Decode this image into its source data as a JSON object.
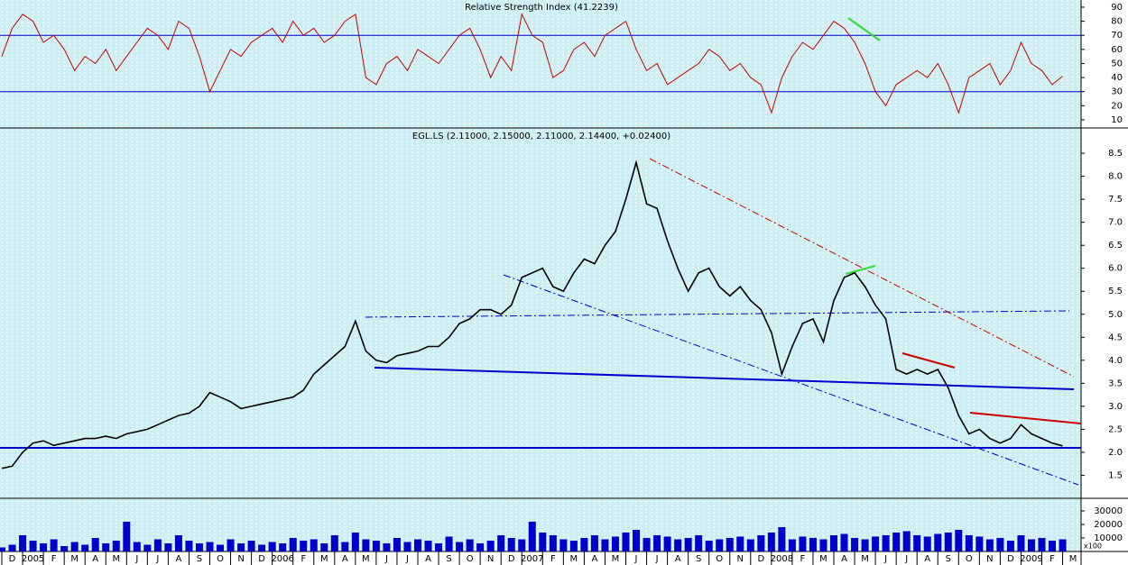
{
  "chart_data": [
    {
      "type": "line",
      "title": "Relative Strength Index (41.2239)",
      "series": [
        {
          "name": "RSI",
          "color": "#cc0000",
          "values": [
            55,
            75,
            85,
            80,
            65,
            70,
            60,
            45,
            55,
            50,
            60,
            45,
            55,
            65,
            75,
            70,
            60,
            80,
            75,
            55,
            30,
            45,
            60,
            55,
            65,
            70,
            75,
            65,
            80,
            70,
            75,
            65,
            70,
            80,
            85,
            40,
            35,
            50,
            55,
            45,
            60,
            55,
            50,
            60,
            70,
            75,
            60,
            40,
            55,
            45,
            85,
            70,
            65,
            40,
            45,
            60,
            65,
            55,
            70,
            75,
            80,
            60,
            45,
            50,
            35,
            40,
            45,
            50,
            60,
            55,
            45,
            50,
            40,
            35,
            15,
            40,
            55,
            65,
            60,
            70,
            80,
            75,
            65,
            50,
            30,
            20,
            35,
            40,
            45,
            40,
            50,
            35,
            15,
            40,
            45,
            50,
            35,
            45,
            65,
            50,
            45,
            35,
            41
          ]
        }
      ],
      "levels": [
        70,
        30
      ],
      "level_color": "#0000cc",
      "ylim": [
        4.2,
        95.1
      ],
      "yticks": [
        10,
        20,
        30,
        40,
        50,
        60,
        70,
        80,
        90
      ]
    },
    {
      "type": "line",
      "title": "EGL.LS (2.11000, 2.15000, 2.11000, 2.14400, +0.02400)",
      "series": [
        {
          "name": "EGL.LS",
          "color": "#000000",
          "values": [
            1.65,
            1.7,
            2.0,
            2.2,
            2.25,
            2.15,
            2.2,
            2.25,
            2.3,
            2.3,
            2.35,
            2.3,
            2.4,
            2.45,
            2.5,
            2.6,
            2.7,
            2.8,
            2.85,
            3.0,
            3.3,
            3.2,
            3.1,
            2.95,
            3.0,
            3.05,
            3.1,
            3.15,
            3.2,
            3.35,
            3.7,
            3.9,
            4.1,
            4.3,
            4.85,
            4.2,
            4.0,
            3.95,
            4.1,
            4.15,
            4.2,
            4.3,
            4.3,
            4.5,
            4.8,
            4.9,
            5.1,
            5.1,
            5.0,
            5.2,
            5.8,
            5.9,
            6.0,
            5.6,
            5.5,
            5.9,
            6.2,
            6.1,
            6.5,
            6.8,
            7.5,
            8.3,
            7.4,
            7.3,
            6.6,
            6.0,
            5.5,
            5.9,
            6.0,
            5.6,
            5.4,
            5.6,
            5.3,
            5.1,
            4.6,
            3.7,
            4.3,
            4.8,
            4.9,
            4.4,
            5.3,
            5.8,
            5.9,
            5.6,
            5.2,
            4.9,
            3.8,
            3.7,
            3.8,
            3.7,
            3.8,
            3.4,
            2.8,
            2.4,
            2.5,
            2.3,
            2.2,
            2.3,
            2.6,
            2.4,
            2.3,
            2.2,
            2.14
          ]
        }
      ],
      "ylim": [
        1.0,
        9.05
      ],
      "yticks": [
        1.5,
        {
          "value": 2,
          "label": "2.0"
        },
        2.5,
        {
          "value": 3,
          "label": "3.0"
        },
        3.5,
        {
          "value": 4,
          "label": "4.0"
        },
        4.5,
        {
          "value": 5,
          "label": "5.0"
        },
        5.5,
        {
          "value": 6,
          "label": "6.0"
        },
        6.5,
        {
          "value": 7,
          "label": "7.0"
        },
        7.5,
        {
          "value": 8,
          "label": "8.0"
        },
        8.5
      ]
    },
    {
      "type": "bar",
      "unit_label": "x100",
      "series": [
        {
          "name": "Volume",
          "color": "#0000cc",
          "values": [
            3000,
            5000,
            12000,
            8000,
            6000,
            9000,
            4000,
            7000,
            5000,
            10000,
            6000,
            8000,
            22000,
            7000,
            5000,
            9000,
            6000,
            12000,
            8000,
            6000,
            7000,
            5000,
            9000,
            6000,
            8000,
            5000,
            7000,
            6000,
            10000,
            8000,
            9000,
            6000,
            12000,
            7000,
            14000,
            9000,
            8000,
            6000,
            10000,
            7000,
            9000,
            8000,
            6000,
            11000,
            7000,
            9000,
            6000,
            8000,
            12000,
            10000,
            9000,
            22000,
            14000,
            12000,
            9000,
            8000,
            10000,
            12000,
            9000,
            11000,
            14000,
            16000,
            10000,
            12000,
            11000,
            9000,
            10000,
            12000,
            8000,
            9000,
            10000,
            11000,
            9000,
            12000,
            14000,
            18000,
            9000,
            11000,
            10000,
            9000,
            12000,
            13000,
            10000,
            9000,
            11000,
            12000,
            14000,
            15000,
            12000,
            11000,
            13000,
            14000,
            16000,
            12000,
            11000,
            9000,
            10000,
            8000,
            12000,
            9000,
            10000,
            8000,
            9000
          ]
        }
      ],
      "ylim": [
        0,
        39300
      ],
      "yticks": [
        10000,
        20000,
        30000
      ]
    }
  ],
  "time_axis": {
    "labels": [
      "D",
      "2005",
      "F",
      "M",
      "A",
      "M",
      "J",
      "J",
      "A",
      "S",
      "O",
      "N",
      "D",
      "2006",
      "F",
      "M",
      "A",
      "M",
      "J",
      "J",
      "A",
      "S",
      "O",
      "N",
      "D",
      "2007",
      "F",
      "M",
      "A",
      "M",
      "J",
      "J",
      "A",
      "S",
      "O",
      "N",
      "D",
      "2008",
      "F",
      "M",
      "A",
      "M",
      "J",
      "J",
      "A",
      "S",
      "O",
      "N",
      "D",
      "2009",
      "F",
      "M"
    ]
  }
}
